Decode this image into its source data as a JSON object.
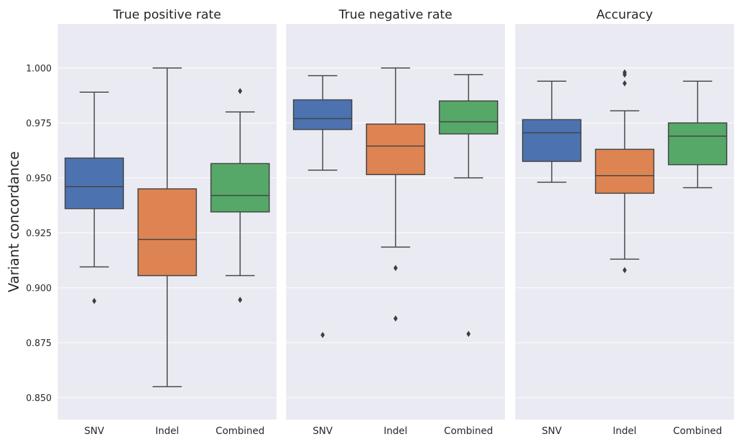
{
  "figure": {
    "ylabel": "Variant concordance"
  },
  "chart_data": [
    {
      "type": "box",
      "title": "True positive rate",
      "ylabel": "Variant concordance",
      "ylim": [
        0.84,
        1.02
      ],
      "yticks": [
        0.85,
        0.875,
        0.9,
        0.925,
        0.95,
        0.975,
        1.0
      ],
      "ytick_labels": [
        "0.850",
        "0.875",
        "0.900",
        "0.925",
        "0.950",
        "0.975",
        "1.000"
      ],
      "grid": true,
      "categories": [
        "SNV",
        "Indel",
        "Combined"
      ],
      "boxes": [
        {
          "category": "SNV",
          "color": "#4c72b0",
          "whisker_low": 0.9095,
          "q1": 0.936,
          "median": 0.946,
          "q3": 0.959,
          "whisker_high": 0.989,
          "outliers": [
            0.894
          ]
        },
        {
          "category": "Indel",
          "color": "#dd8452",
          "whisker_low": 0.855,
          "q1": 0.9055,
          "median": 0.922,
          "q3": 0.945,
          "whisker_high": 1.0,
          "outliers": []
        },
        {
          "category": "Combined",
          "color": "#55a868",
          "whisker_low": 0.9055,
          "q1": 0.9345,
          "median": 0.942,
          "q3": 0.9565,
          "whisker_high": 0.98,
          "outliers": [
            0.8945,
            0.9895
          ]
        }
      ]
    },
    {
      "type": "box",
      "title": "True negative rate",
      "ylim": [
        0.84,
        1.02
      ],
      "grid": true,
      "categories": [
        "SNV",
        "Indel",
        "Combined"
      ],
      "boxes": [
        {
          "category": "SNV",
          "color": "#4c72b0",
          "whisker_low": 0.9535,
          "q1": 0.972,
          "median": 0.977,
          "q3": 0.9855,
          "whisker_high": 0.9965,
          "outliers": [
            0.8785
          ]
        },
        {
          "category": "Indel",
          "color": "#dd8452",
          "whisker_low": 0.9185,
          "q1": 0.9515,
          "median": 0.9645,
          "q3": 0.9745,
          "whisker_high": 1.0,
          "outliers": [
            0.909,
            0.886
          ]
        },
        {
          "category": "Combined",
          "color": "#55a868",
          "whisker_low": 0.95,
          "q1": 0.97,
          "median": 0.9755,
          "q3": 0.985,
          "whisker_high": 0.997,
          "outliers": [
            0.879
          ]
        }
      ]
    },
    {
      "type": "box",
      "title": "Accuracy",
      "ylim": [
        0.84,
        1.02
      ],
      "grid": true,
      "categories": [
        "SNV",
        "Indel",
        "Combined"
      ],
      "boxes": [
        {
          "category": "SNV",
          "color": "#4c72b0",
          "whisker_low": 0.948,
          "q1": 0.9575,
          "median": 0.9705,
          "q3": 0.9765,
          "whisker_high": 0.994,
          "outliers": []
        },
        {
          "category": "Indel",
          "color": "#dd8452",
          "whisker_low": 0.913,
          "q1": 0.943,
          "median": 0.951,
          "q3": 0.963,
          "whisker_high": 0.9805,
          "outliers": [
            0.908,
            0.993,
            0.997,
            0.998
          ]
        },
        {
          "category": "Combined",
          "color": "#55a868",
          "whisker_low": 0.9455,
          "q1": 0.956,
          "median": 0.969,
          "q3": 0.975,
          "whisker_high": 0.994,
          "outliers": []
        }
      ]
    }
  ]
}
